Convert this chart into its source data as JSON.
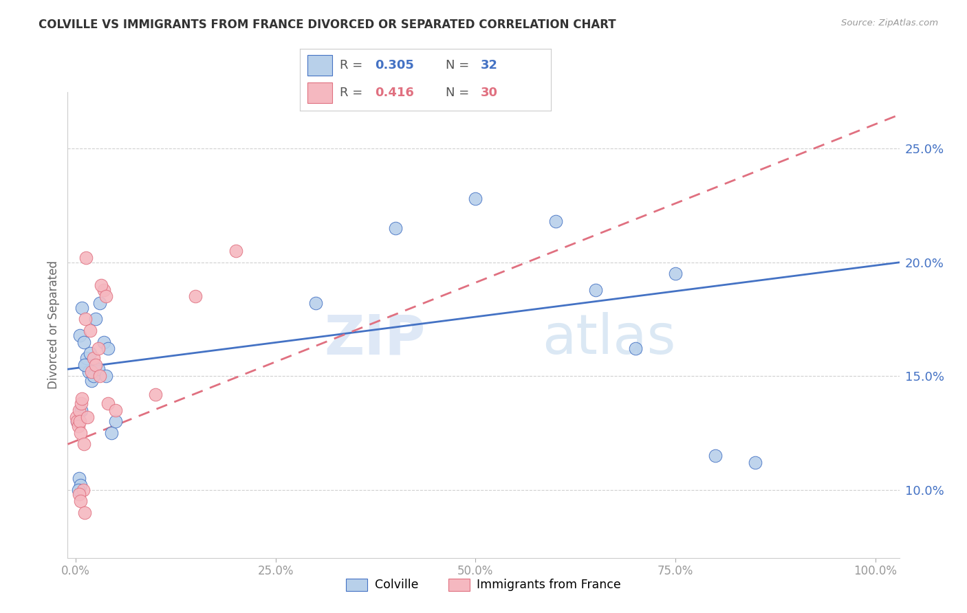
{
  "title": "COLVILLE VS IMMIGRANTS FROM FRANCE DIVORCED OR SEPARATED CORRELATION CHART",
  "source": "Source: ZipAtlas.com",
  "ylabel": "Divorced or Separated",
  "legend_blue_r": "0.305",
  "legend_blue_n": "32",
  "legend_pink_r": "0.416",
  "legend_pink_n": "30",
  "blue_color": "#b8d0ea",
  "pink_color": "#f5b8c0",
  "trend_blue": "#4472c4",
  "trend_pink": "#e07080",
  "watermark_zip": "ZIP",
  "watermark_atlas": "atlas",
  "ytick_color": "#4472c4",
  "blue_x": [
    0.2,
    0.4,
    0.5,
    0.6,
    0.8,
    1.0,
    1.2,
    1.4,
    1.6,
    1.8,
    2.0,
    2.2,
    2.5,
    2.8,
    3.0,
    3.5,
    3.8,
    4.0,
    4.5,
    5.0,
    30.0,
    40.0,
    50.0,
    60.0,
    65.0,
    70.0,
    75.0,
    80.0,
    85.0,
    0.3,
    0.7,
    1.1
  ],
  "blue_y": [
    13.0,
    10.5,
    16.8,
    10.2,
    18.0,
    16.5,
    15.5,
    15.8,
    15.2,
    16.0,
    14.8,
    15.0,
    17.5,
    15.3,
    18.2,
    16.5,
    15.0,
    16.2,
    12.5,
    13.0,
    18.2,
    21.5,
    22.8,
    21.8,
    18.8,
    16.2,
    19.5,
    11.5,
    11.2,
    10.0,
    13.5,
    15.5
  ],
  "pink_x": [
    0.1,
    0.2,
    0.3,
    0.4,
    0.5,
    0.6,
    0.7,
    0.8,
    1.0,
    1.2,
    1.5,
    1.8,
    2.0,
    2.2,
    2.5,
    3.0,
    3.5,
    4.0,
    5.0,
    10.0,
    15.0,
    20.0,
    3.2,
    1.3,
    0.9,
    0.4,
    0.6,
    1.1,
    2.8,
    3.8
  ],
  "pink_y": [
    13.2,
    13.0,
    12.8,
    13.5,
    13.0,
    12.5,
    13.8,
    14.0,
    12.0,
    17.5,
    13.2,
    17.0,
    15.2,
    15.8,
    15.5,
    15.0,
    18.8,
    13.8,
    13.5,
    14.2,
    18.5,
    20.5,
    19.0,
    20.2,
    10.0,
    9.8,
    9.5,
    9.0,
    16.2,
    18.5
  ],
  "ylim_min": 7.0,
  "ylim_max": 27.5,
  "xlim_min": -1.0,
  "xlim_max": 103.0,
  "yticks": [
    10.0,
    15.0,
    20.0,
    25.0
  ],
  "xticks": [
    0.0,
    25.0,
    50.0,
    75.0,
    100.0
  ],
  "background": "#ffffff",
  "grid_color": "#d0d0d0",
  "blue_trend_x0": -1.0,
  "blue_trend_x1": 103.0,
  "blue_trend_y0": 15.3,
  "blue_trend_y1": 20.0,
  "pink_trend_x0": -1.0,
  "pink_trend_x1": 103.0,
  "pink_trend_y0": 12.0,
  "pink_trend_y1": 26.5
}
